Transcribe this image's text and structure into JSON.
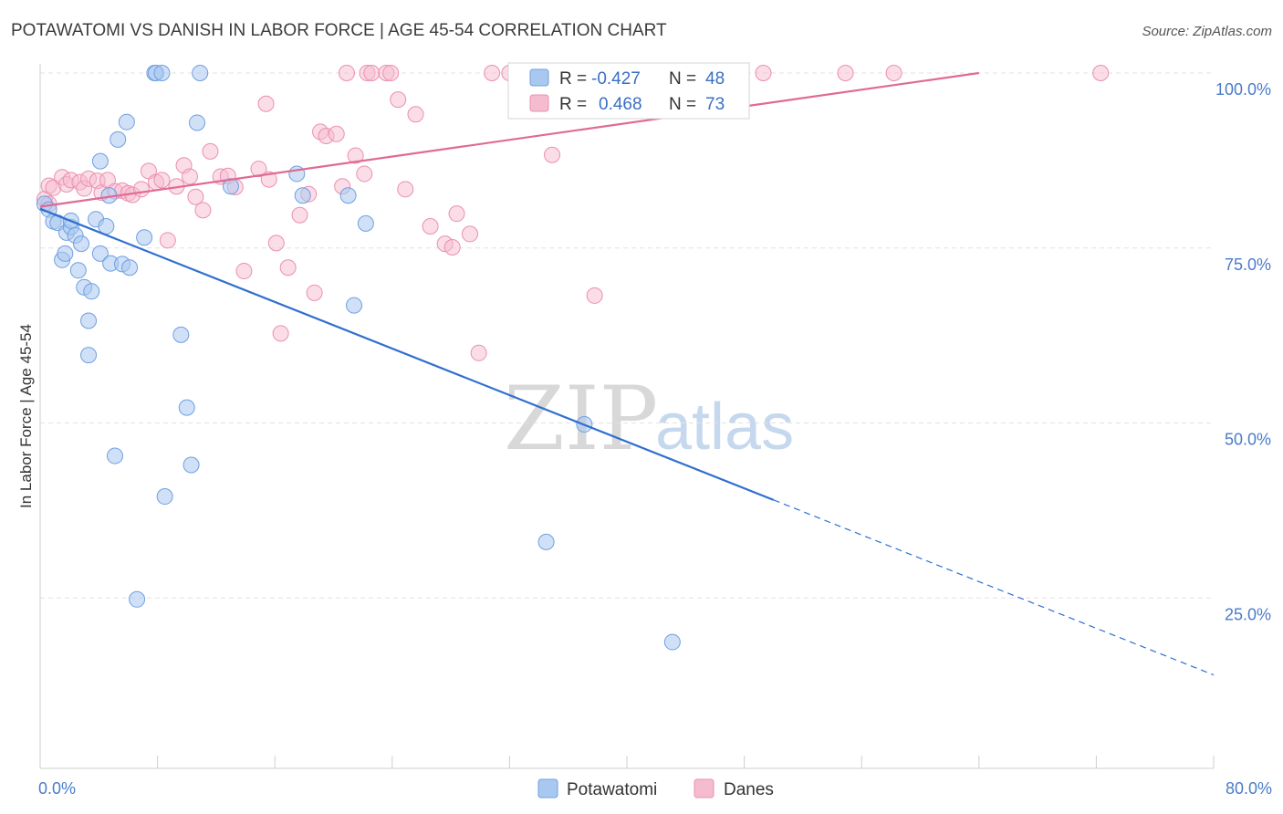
{
  "title": "POTAWATOMI VS DANISH IN LABOR FORCE | AGE 45-54 CORRELATION CHART",
  "source": "Source: ZipAtlas.com",
  "watermark": {
    "zip": "ZIP",
    "atlas": "atlas"
  },
  "colors": {
    "potawatomi_fill": "#a9c8f0",
    "potawatomi_stroke": "#6f9fe0",
    "potawatomi_line": "#2f6fd0",
    "danes_fill": "#f5bcd0",
    "danes_stroke": "#ec8fb0",
    "danes_line": "#e06a94",
    "grid": "#e2e2e2",
    "tick_label": "#4a7cc9"
  },
  "legend": {
    "rows": [
      {
        "r_label": "R =",
        "r_value": "-0.427",
        "n_label": "N =",
        "n_value": "48"
      },
      {
        "r_label": "R =",
        "r_value": "0.468",
        "n_label": "N =",
        "n_value": "73"
      }
    ]
  },
  "chart_data": {
    "type": "scatter",
    "title": "POTAWATOMI VS DANISH IN LABOR FORCE | AGE 45-54 CORRELATION CHART",
    "xlabel": "",
    "ylabel": "In Labor Force | Age 45-54",
    "xlim": [
      0,
      80
    ],
    "ylim": [
      0,
      100
    ],
    "x_tick_labels": [
      "0.0%",
      "80.0%"
    ],
    "y_ticks": [
      25,
      50,
      75,
      100
    ],
    "y_tick_labels": [
      "25.0%",
      "50.0%",
      "75.0%",
      "100.0%"
    ],
    "grid": true,
    "legend_position": "top-center",
    "series": [
      {
        "name": "Potawatomi",
        "r": -0.427,
        "n": 48,
        "trend": {
          "x_start": 0,
          "y_start": 80.6,
          "x_solid_end": 50,
          "y_solid_end": 39.0,
          "x_end": 80,
          "y_end": 14.0
        },
        "points": [
          [
            0.3,
            81.3
          ],
          [
            0.6,
            80.5
          ],
          [
            0.9,
            78.8
          ],
          [
            1.2,
            78.6
          ],
          [
            1.5,
            73.3
          ],
          [
            1.7,
            74.2
          ],
          [
            1.8,
            77.2
          ],
          [
            2.1,
            78.0
          ],
          [
            2.1,
            78.9
          ],
          [
            2.4,
            76.8
          ],
          [
            2.6,
            71.8
          ],
          [
            2.8,
            75.6
          ],
          [
            3.0,
            69.4
          ],
          [
            3.3,
            64.6
          ],
          [
            3.5,
            68.8
          ],
          [
            3.3,
            59.7
          ],
          [
            3.8,
            79.1
          ],
          [
            4.1,
            87.4
          ],
          [
            4.1,
            74.2
          ],
          [
            4.5,
            78.1
          ],
          [
            4.7,
            82.5
          ],
          [
            4.8,
            72.8
          ],
          [
            5.1,
            45.3
          ],
          [
            5.3,
            90.5
          ],
          [
            5.6,
            72.7
          ],
          [
            5.9,
            93.0
          ],
          [
            6.1,
            72.2
          ],
          [
            6.6,
            24.8
          ],
          [
            7.1,
            76.5
          ],
          [
            7.8,
            100
          ],
          [
            7.9,
            100
          ],
          [
            8.3,
            100
          ],
          [
            8.5,
            39.5
          ],
          [
            9.6,
            62.6
          ],
          [
            10.0,
            52.2
          ],
          [
            10.3,
            44.0
          ],
          [
            10.7,
            92.9
          ],
          [
            10.9,
            100
          ],
          [
            13.0,
            83.8
          ],
          [
            17.5,
            85.6
          ],
          [
            17.9,
            82.5
          ],
          [
            21.0,
            82.5
          ],
          [
            21.4,
            66.8
          ],
          [
            22.2,
            78.5
          ],
          [
            34.5,
            33.0
          ],
          [
            37.1,
            49.8
          ],
          [
            43.1,
            18.7
          ]
        ]
      },
      {
        "name": "Danes",
        "r": 0.468,
        "n": 73,
        "trend": {
          "x_start": 0,
          "y_start": 80.9,
          "x_end": 64,
          "y_end": 100
        },
        "points": [
          [
            0.3,
            82.0
          ],
          [
            0.6,
            81.3
          ],
          [
            0.6,
            83.9
          ],
          [
            0.9,
            83.6
          ],
          [
            1.5,
            85.1
          ],
          [
            1.8,
            84.1
          ],
          [
            2.1,
            84.7
          ],
          [
            2.7,
            84.4
          ],
          [
            3.0,
            83.5
          ],
          [
            3.3,
            84.9
          ],
          [
            3.9,
            84.6
          ],
          [
            4.2,
            82.9
          ],
          [
            4.6,
            84.7
          ],
          [
            5.1,
            83.1
          ],
          [
            5.6,
            83.2
          ],
          [
            6.0,
            82.8
          ],
          [
            6.3,
            82.6
          ],
          [
            6.9,
            83.4
          ],
          [
            7.4,
            86.0
          ],
          [
            7.9,
            84.4
          ],
          [
            8.3,
            84.7
          ],
          [
            8.7,
            76.1
          ],
          [
            9.3,
            83.8
          ],
          [
            9.8,
            86.8
          ],
          [
            10.2,
            85.2
          ],
          [
            10.6,
            82.3
          ],
          [
            11.1,
            80.4
          ],
          [
            11.6,
            88.8
          ],
          [
            12.3,
            85.2
          ],
          [
            12.8,
            85.3
          ],
          [
            13.3,
            83.7
          ],
          [
            13.9,
            71.7
          ],
          [
            14.9,
            86.3
          ],
          [
            15.4,
            95.6
          ],
          [
            15.6,
            84.8
          ],
          [
            16.1,
            75.7
          ],
          [
            16.4,
            62.8
          ],
          [
            16.9,
            72.2
          ],
          [
            17.7,
            79.7
          ],
          [
            18.3,
            82.7
          ],
          [
            18.7,
            68.6
          ],
          [
            19.1,
            91.6
          ],
          [
            19.5,
            91.0
          ],
          [
            20.2,
            91.3
          ],
          [
            20.6,
            83.8
          ],
          [
            20.9,
            100
          ],
          [
            21.5,
            88.2
          ],
          [
            22.1,
            85.6
          ],
          [
            22.3,
            100
          ],
          [
            22.6,
            100
          ],
          [
            23.6,
            100
          ],
          [
            23.9,
            100
          ],
          [
            24.4,
            96.2
          ],
          [
            24.9,
            83.4
          ],
          [
            25.6,
            94.1
          ],
          [
            26.6,
            78.1
          ],
          [
            27.6,
            75.6
          ],
          [
            28.1,
            75.1
          ],
          [
            28.4,
            79.9
          ],
          [
            29.3,
            77.0
          ],
          [
            29.9,
            60.0
          ],
          [
            30.8,
            100
          ],
          [
            32.0,
            100
          ],
          [
            34.5,
            100
          ],
          [
            34.9,
            88.3
          ],
          [
            37.8,
            68.2
          ],
          [
            44.0,
            100
          ],
          [
            47.8,
            100
          ],
          [
            49.3,
            100
          ],
          [
            54.9,
            100
          ],
          [
            58.2,
            100
          ],
          [
            72.3,
            100
          ]
        ]
      }
    ]
  }
}
